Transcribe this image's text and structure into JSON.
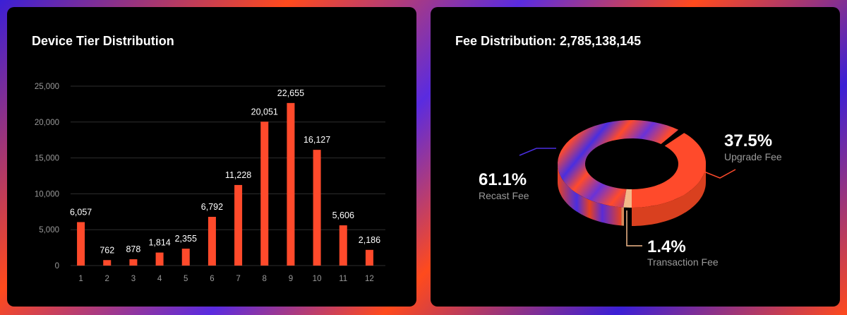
{
  "chart_data": [
    {
      "type": "bar",
      "title": "Device Tier Distribution",
      "categories": [
        "1",
        "2",
        "3",
        "4",
        "5",
        "6",
        "7",
        "8",
        "9",
        "10",
        "11",
        "12"
      ],
      "values": [
        6057,
        762,
        878,
        1814,
        2355,
        6792,
        11228,
        20051,
        22655,
        16127,
        5606,
        2186
      ],
      "value_labels": [
        "6,057",
        "762",
        "878",
        "1,814",
        "2,355",
        "6,792",
        "11,228",
        "20,051",
        "22,655",
        "16,127",
        "5,606",
        "2,186"
      ],
      "yticks": [
        0,
        5000,
        10000,
        15000,
        20000,
        25000
      ],
      "ytick_labels": [
        "0",
        "5,000",
        "10,000",
        "15,000",
        "20,000",
        "25,000"
      ],
      "ylim": [
        0,
        25000
      ],
      "grid": true,
      "bar_color": "#ff4a2b"
    },
    {
      "type": "pie",
      "title": "Fee Distribution: 2,785,138,145",
      "slices": [
        {
          "label": "Recast Fee",
          "value": 61.1,
          "percent_label": "61.1%",
          "color": "#ff4a2b"
        },
        {
          "label": "Upgrade Fee",
          "value": 37.5,
          "percent_label": "37.5%",
          "color": "#ff4a2b"
        },
        {
          "label": "Transaction Fee",
          "value": 1.4,
          "percent_label": "1.4%",
          "color": "#f3b98a"
        }
      ],
      "accent_colors": [
        "#ff4a2b",
        "#4a2ee0",
        "#f3b98a"
      ]
    }
  ]
}
